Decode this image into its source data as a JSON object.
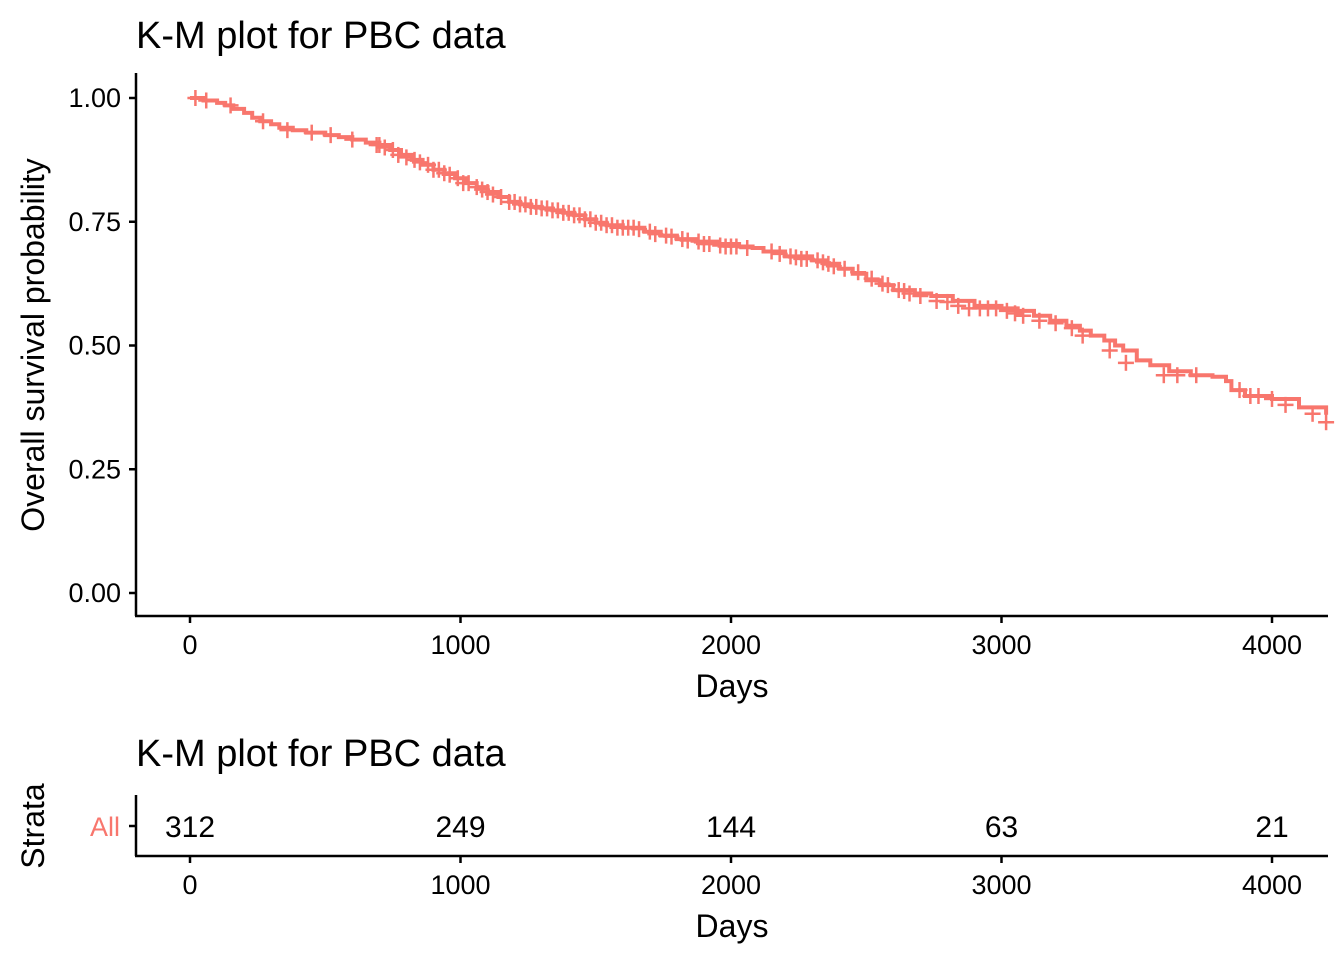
{
  "colors": {
    "curve": "#F8766D",
    "axis": "#000000",
    "background": "#FFFFFF"
  },
  "chart_data": [
    {
      "type": "line",
      "subtype": "kaplan-meier-step",
      "title": "K-M plot for PBC data",
      "xlabel": "Days",
      "ylabel": "Overall survival probability",
      "xlim": [
        -200,
        4200
      ],
      "ylim": [
        -0.045,
        1.05
      ],
      "x_ticks": [
        0,
        1000,
        2000,
        3000,
        4000
      ],
      "x_tick_labels": [
        "0",
        "1000",
        "2000",
        "3000",
        "4000"
      ],
      "y_ticks": [
        0,
        0.25,
        0.5,
        0.75,
        1.0
      ],
      "y_tick_labels": [
        "0.00",
        "0.25",
        "0.50",
        "0.75",
        "1.00"
      ],
      "grid": false,
      "legend": "none",
      "series": [
        {
          "x": [
            0,
            50,
            100,
            130,
            160,
            200,
            230,
            260,
            300,
            330,
            380,
            430,
            500,
            550,
            600,
            650,
            700,
            740,
            780,
            820,
            860,
            900,
            940,
            980,
            1020,
            1060,
            1100,
            1140,
            1180,
            1220,
            1260,
            1300,
            1340,
            1380,
            1420,
            1460,
            1500,
            1540,
            1600,
            1680,
            1740,
            1800,
            1870,
            1950,
            2030,
            2080,
            2120,
            2200,
            2300,
            2350,
            2400,
            2450,
            2500,
            2550,
            2600,
            2680,
            2740,
            2820,
            2900,
            3000,
            3060,
            3120,
            3180,
            3240,
            3290,
            3330,
            3380,
            3420,
            3450,
            3500,
            3550,
            3620,
            3700,
            3780,
            3830,
            3850,
            3900,
            4000,
            4100,
            4200
          ],
          "y": [
            1.0,
            0.995,
            0.99,
            0.985,
            0.978,
            0.97,
            0.96,
            0.953,
            0.947,
            0.94,
            0.935,
            0.93,
            0.925,
            0.921,
            0.916,
            0.91,
            0.905,
            0.895,
            0.885,
            0.875,
            0.865,
            0.855,
            0.848,
            0.838,
            0.828,
            0.82,
            0.81,
            0.8,
            0.79,
            0.785,
            0.78,
            0.777,
            0.773,
            0.768,
            0.763,
            0.755,
            0.748,
            0.743,
            0.738,
            0.73,
            0.722,
            0.715,
            0.71,
            0.705,
            0.7,
            0.697,
            0.69,
            0.68,
            0.672,
            0.665,
            0.655,
            0.645,
            0.632,
            0.622,
            0.612,
            0.605,
            0.6,
            0.59,
            0.58,
            0.575,
            0.57,
            0.56,
            0.55,
            0.54,
            0.53,
            0.52,
            0.51,
            0.5,
            0.49,
            0.47,
            0.46,
            0.448,
            0.44,
            0.437,
            0.428,
            0.41,
            0.398,
            0.392,
            0.375,
            0.36
          ],
          "censored_x": [
            20,
            60,
            150,
            270,
            360,
            450,
            520,
            600,
            690,
            700,
            720,
            750,
            770,
            800,
            830,
            850,
            880,
            900,
            920,
            940,
            960,
            990,
            1010,
            1030,
            1060,
            1080,
            1100,
            1120,
            1150,
            1180,
            1200,
            1220,
            1240,
            1260,
            1280,
            1300,
            1320,
            1340,
            1360,
            1380,
            1400,
            1420,
            1440,
            1460,
            1480,
            1500,
            1520,
            1540,
            1560,
            1580,
            1600,
            1620,
            1640,
            1660,
            1700,
            1720,
            1760,
            1780,
            1820,
            1840,
            1880,
            1900,
            1920,
            1960,
            1980,
            2000,
            2020,
            2060,
            2150,
            2180,
            2220,
            2240,
            2260,
            2280,
            2320,
            2340,
            2360,
            2380,
            2420,
            2470,
            2520,
            2560,
            2580,
            2620,
            2640,
            2660,
            2700,
            2760,
            2800,
            2840,
            2880,
            2920,
            2950,
            2980,
            3020,
            3050,
            3080,
            3140,
            3200,
            3260,
            3300,
            3400,
            3460,
            3600,
            3650,
            3720,
            3880,
            3920,
            3950,
            4000,
            4050,
            4150,
            4200
          ],
          "censored_y": [
            1.0,
            0.995,
            0.985,
            0.953,
            0.935,
            0.93,
            0.925,
            0.916,
            0.905,
            0.905,
            0.9,
            0.895,
            0.885,
            0.88,
            0.875,
            0.87,
            0.865,
            0.855,
            0.855,
            0.848,
            0.845,
            0.838,
            0.828,
            0.828,
            0.82,
            0.815,
            0.81,
            0.805,
            0.8,
            0.79,
            0.79,
            0.785,
            0.785,
            0.78,
            0.78,
            0.777,
            0.777,
            0.773,
            0.773,
            0.768,
            0.768,
            0.763,
            0.763,
            0.755,
            0.755,
            0.748,
            0.748,
            0.743,
            0.743,
            0.738,
            0.738,
            0.738,
            0.738,
            0.735,
            0.73,
            0.725,
            0.722,
            0.72,
            0.715,
            0.712,
            0.71,
            0.705,
            0.705,
            0.702,
            0.7,
            0.7,
            0.7,
            0.697,
            0.69,
            0.685,
            0.68,
            0.678,
            0.675,
            0.675,
            0.672,
            0.668,
            0.665,
            0.66,
            0.655,
            0.648,
            0.635,
            0.625,
            0.622,
            0.612,
            0.61,
            0.605,
            0.6,
            0.59,
            0.588,
            0.58,
            0.575,
            0.575,
            0.575,
            0.575,
            0.57,
            0.565,
            0.56,
            0.55,
            0.545,
            0.535,
            0.52,
            0.49,
            0.465,
            0.44,
            0.44,
            0.44,
            0.41,
            0.398,
            0.398,
            0.392,
            0.38,
            0.362,
            0.345
          ]
        }
      ]
    },
    {
      "type": "table",
      "subtype": "number-at-risk",
      "title": "K-M plot for PBC data",
      "xlabel": "Days",
      "ylabel": "Strata",
      "xlim": [
        -200,
        4200
      ],
      "x_ticks": [
        0,
        1000,
        2000,
        3000,
        4000
      ],
      "x_tick_labels": [
        "0",
        "1000",
        "2000",
        "3000",
        "4000"
      ],
      "strata": [
        "All"
      ],
      "times": [
        0,
        1000,
        2000,
        3000,
        4000
      ],
      "values": [
        "312",
        "249",
        "144",
        "63",
        "21"
      ]
    }
  ]
}
